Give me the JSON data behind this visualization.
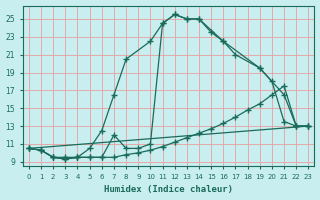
{
  "xlabel": "Humidex (Indice chaleur)",
  "xlim": [
    -0.5,
    23.5
  ],
  "ylim": [
    8.5,
    26.5
  ],
  "xticks": [
    0,
    1,
    2,
    3,
    4,
    5,
    6,
    7,
    8,
    9,
    10,
    11,
    12,
    13,
    14,
    15,
    16,
    17,
    18,
    19,
    20,
    21,
    22,
    23
  ],
  "yticks": [
    9,
    11,
    13,
    15,
    17,
    19,
    21,
    23,
    25
  ],
  "bg_color": "#c8eef0",
  "grid_color": "#e8a0a0",
  "line_color": "#1a6b5a",
  "curve1_x": [
    0,
    1,
    2,
    3,
    4,
    5,
    6,
    7,
    8,
    9,
    10,
    11,
    12,
    13,
    14,
    16,
    19,
    21,
    22,
    23
  ],
  "curve1_y": [
    10.5,
    10.3,
    9.5,
    9.3,
    9.5,
    9.5,
    9.5,
    12.0,
    10.5,
    10.5,
    11.0,
    24.5,
    25.5,
    25.0,
    25.0,
    22.5,
    19.5,
    16.5,
    13.0,
    13.0
  ],
  "curve2_x": [
    0,
    1,
    2,
    3,
    4,
    5,
    6,
    7,
    8,
    10,
    11,
    12,
    13,
    14,
    15,
    16,
    17,
    19,
    20,
    21,
    22,
    23
  ],
  "curve2_y": [
    10.5,
    10.3,
    9.5,
    9.5,
    9.5,
    10.5,
    12.5,
    16.5,
    20.5,
    22.5,
    24.5,
    25.5,
    25.0,
    25.0,
    23.5,
    22.5,
    21.0,
    19.5,
    18.0,
    13.5,
    13.0,
    13.0
  ],
  "line3_x": [
    0,
    23
  ],
  "line3_y": [
    10.5,
    13.0
  ],
  "curve4_x": [
    0,
    1,
    2,
    3,
    4,
    5,
    6,
    7,
    8,
    9,
    10,
    11,
    12,
    13,
    14,
    15,
    16,
    17,
    18,
    19,
    20,
    21,
    22,
    23
  ],
  "curve4_y": [
    10.5,
    10.3,
    9.5,
    9.3,
    9.5,
    9.5,
    9.5,
    9.5,
    9.8,
    10.0,
    10.3,
    10.7,
    11.2,
    11.7,
    12.2,
    12.7,
    13.3,
    14.0,
    14.8,
    15.5,
    16.5,
    17.5,
    13.0,
    13.0
  ]
}
